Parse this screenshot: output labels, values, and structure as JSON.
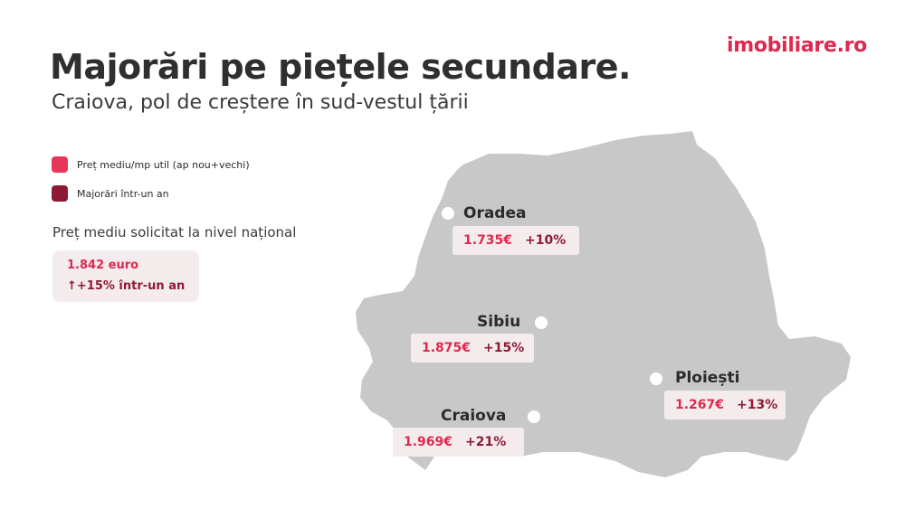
{
  "header": {
    "title": "Majorări pe piețele secundare.",
    "subtitle": "Craiova, pol de creștere în sud-vestul țării",
    "logo": "imobiliare.ro"
  },
  "legend": {
    "items": [
      {
        "label": "Preț mediu/mp util (ap nou+vechi)",
        "color": "#e8355a"
      },
      {
        "label": "Majorări într-un an",
        "color": "#8e1a35"
      }
    ]
  },
  "national": {
    "label": "Preț mediu solicitat la nivel național",
    "price": "1.842 euro",
    "change": "↑+15% într-un an"
  },
  "cities": [
    {
      "name": "Oradea",
      "price": "1.735€",
      "change": "+10%"
    },
    {
      "name": "Sibiu",
      "price": "1.875€",
      "change": "+15%"
    },
    {
      "name": "Ploiești",
      "price": "1.267€",
      "change": "+13%"
    },
    {
      "name": "Craiova",
      "price": "1.969€",
      "change": "+21%"
    }
  ],
  "colors": {
    "accent": "#e0284f",
    "accent_dark": "#8e1a35",
    "map_fill": "#c8c8c8",
    "label_bg": "#f4ecec"
  }
}
